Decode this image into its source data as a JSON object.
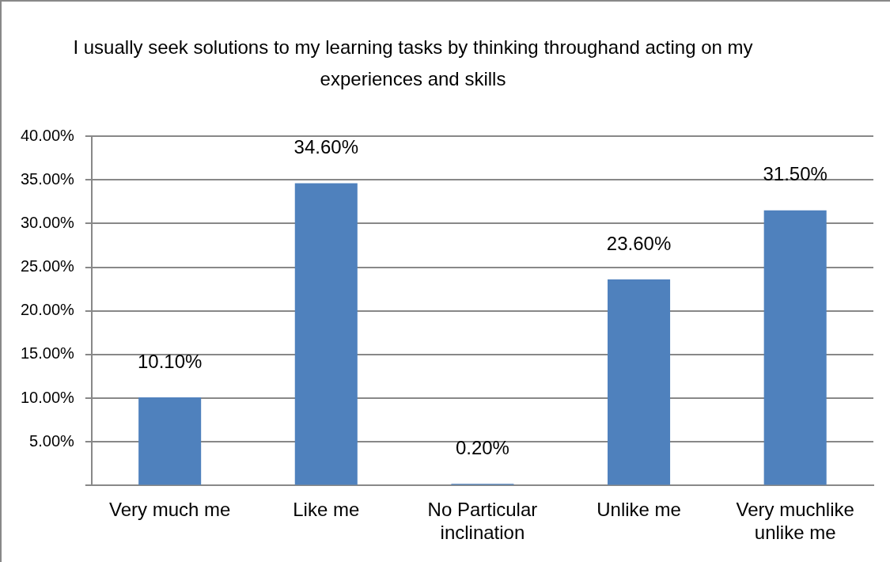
{
  "chart_data": {
    "type": "bar",
    "title": "I usually seek solutions to my learning tasks by thinking throughand acting on my experiences and skills",
    "categories": [
      "Very much me",
      "Like me",
      "No Particular inclination",
      "Unlike me",
      "Very muchlike unlike me"
    ],
    "values": [
      10.1,
      34.6,
      0.2,
      23.6,
      31.5
    ],
    "value_labels": [
      "10.10%",
      "34.60%",
      "0.20%",
      "23.60%",
      "31.50%"
    ],
    "color": "#4f81bd",
    "ylim": [
      0,
      40
    ],
    "yticks": [
      {
        "value": 0,
        "label": null
      },
      {
        "value": 5,
        "label": "5.00%"
      },
      {
        "value": 10,
        "label": "10.00%"
      },
      {
        "value": 15,
        "label": "15.00%"
      },
      {
        "value": 20,
        "label": "20.00%"
      },
      {
        "value": 25,
        "label": "25.00%"
      },
      {
        "value": 30,
        "label": "30.00%"
      },
      {
        "value": 35,
        "label": "35.00%"
      },
      {
        "value": 40,
        "label": "40.00%"
      }
    ],
    "grid": "y",
    "legend": false
  }
}
